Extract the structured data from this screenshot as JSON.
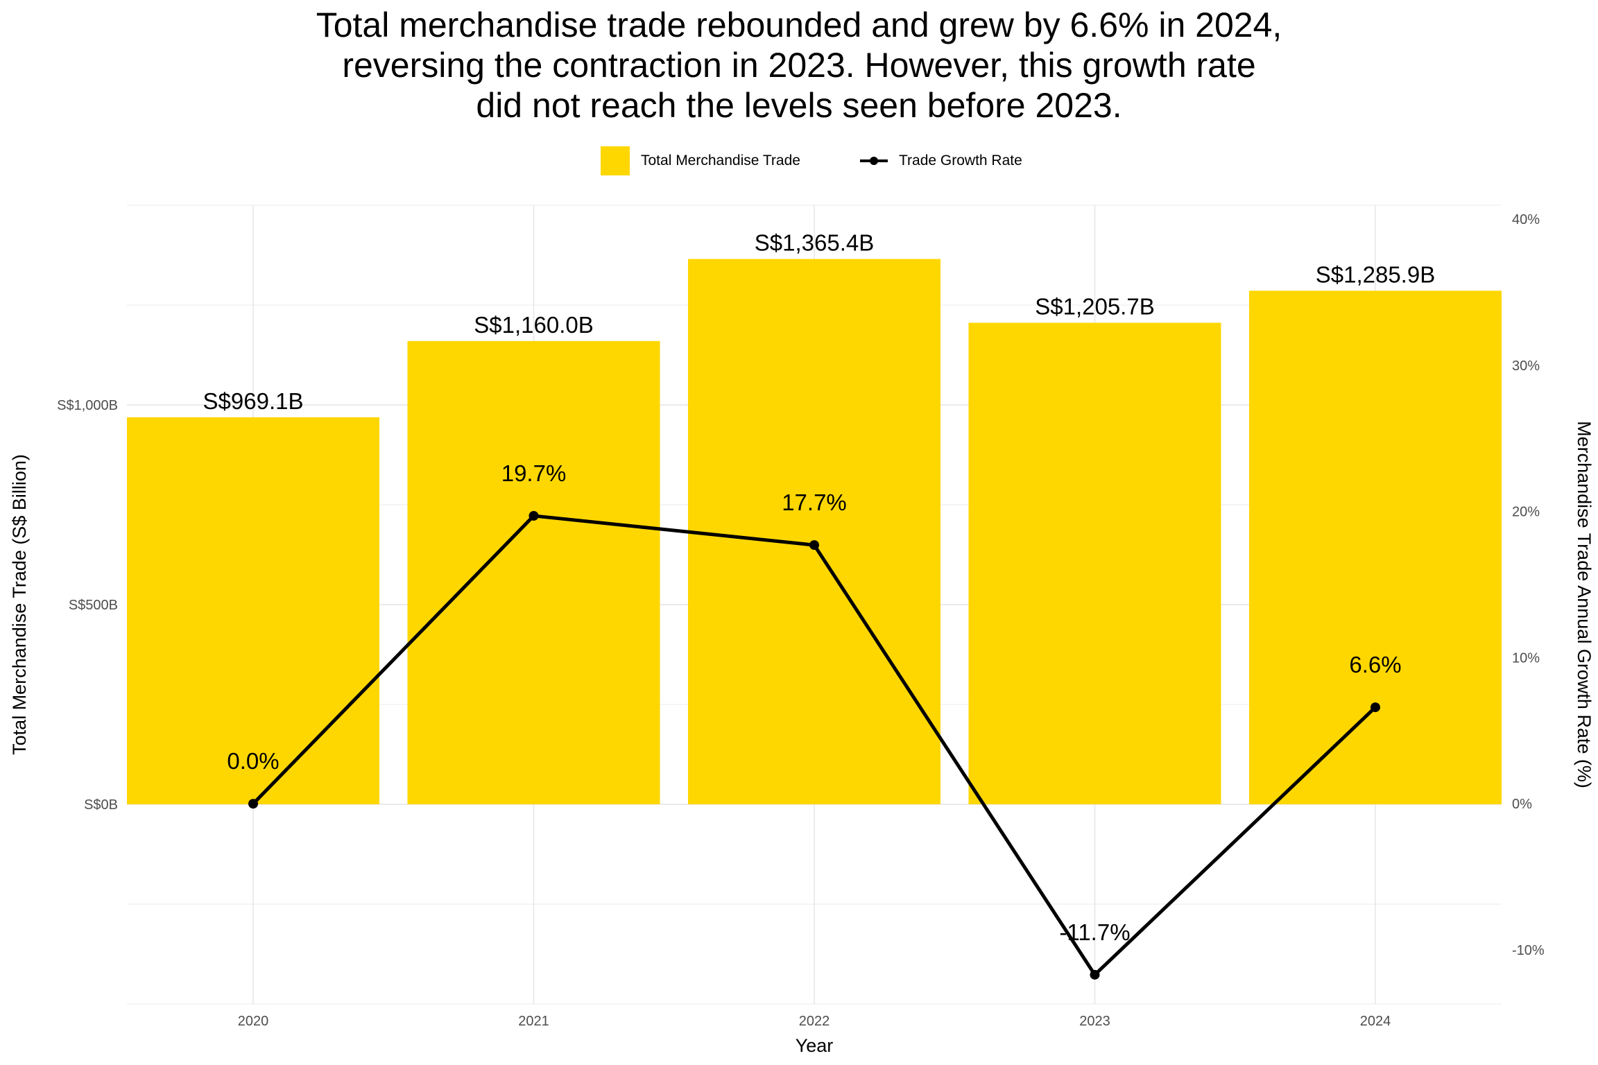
{
  "chart_data": {
    "type": "bar",
    "title_lines": [
      "Total merchandise trade rebounded and grew by 6.6% in 2024,",
      "reversing the contraction in 2023. However, this growth rate",
      "did not reach the levels seen before 2023."
    ],
    "xlabel": "Year",
    "ylabel": "Total Merchandise Trade (S$ Billion)",
    "y2label": "Merchandise Trade Annual Growth Rate (%)",
    "categories": [
      "2020",
      "2021",
      "2022",
      "2023",
      "2024"
    ],
    "series": [
      {
        "name": "Total Merchandise Trade",
        "type": "bar",
        "axis": "left",
        "color": "#FFD700",
        "values": [
          969.1,
          1160.0,
          1365.4,
          1205.7,
          1285.9
        ],
        "labels": [
          "S$969.1B",
          "S$1,160.0B",
          "S$1,365.4B",
          "S$1,205.7B",
          "S$1,285.9B"
        ]
      },
      {
        "name": "Trade Growth Rate",
        "type": "line",
        "axis": "right",
        "color": "#000000",
        "values": [
          0.0,
          19.7,
          17.7,
          -11.7,
          6.6
        ],
        "labels": [
          "0.0%",
          "19.7%",
          "17.7%",
          "-11.7%",
          "6.6%"
        ]
      }
    ],
    "ylim": [
      -500,
      1500
    ],
    "y_ticks": [
      0,
      500,
      1000
    ],
    "y_tick_labels": [
      "S$0B",
      "S$500B",
      "S$1,000B"
    ],
    "y2lim": [
      -13.7,
      40.95
    ],
    "y2_ticks": [
      -10,
      0,
      10,
      20,
      30,
      40
    ],
    "y2_tick_labels": [
      "-10%",
      "0%",
      "10%",
      "20%",
      "30%",
      "40%"
    ],
    "grid": true,
    "legend_position": "top"
  }
}
